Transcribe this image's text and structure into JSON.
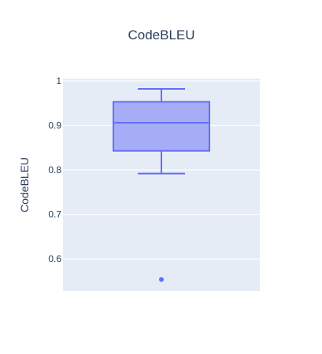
{
  "chart_data": {
    "type": "box",
    "title": "CodeBLEU",
    "xlabel": "",
    "ylabel": "CodeBLEU",
    "ylim": [
      0.528,
      1.005
    ],
    "yticks": [
      0.6,
      0.7,
      0.8,
      0.9,
      1
    ],
    "ytick_labels": [
      "0.6",
      "0.7",
      "0.8",
      "0.9",
      "1"
    ],
    "grid": true,
    "series": [
      {
        "lowerfence": 0.792,
        "q1": 0.843,
        "median": 0.906,
        "q3": 0.953,
        "upperfence": 0.982,
        "outliers": [
          0.554
        ]
      }
    ],
    "colors": {
      "box_fill": "#a6acf6",
      "box_line": "#636efa",
      "plot_bg": "#e5ecf6",
      "grid": "#ffffff",
      "text": "#2a3f5f"
    }
  }
}
